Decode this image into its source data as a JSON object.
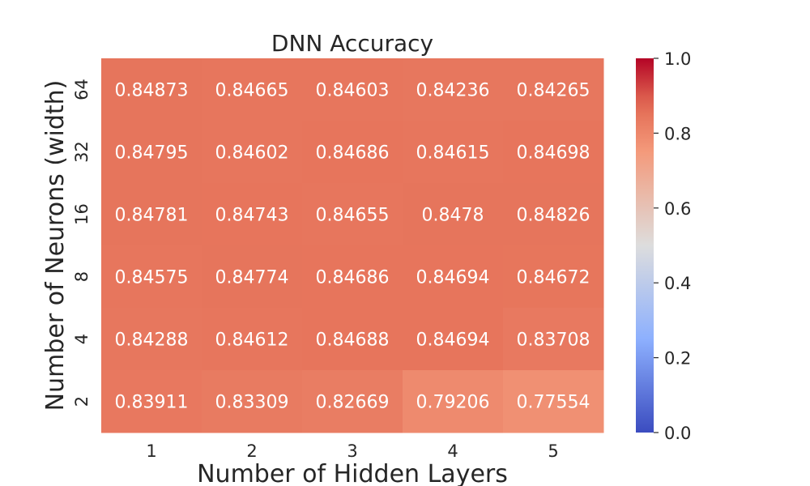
{
  "chart_data": {
    "type": "heatmap",
    "title": "DNN Accuracy",
    "xlabel": "Number of Hidden Layers",
    "ylabel": "Number of Neurons (width)",
    "x_categories": [
      "1",
      "2",
      "3",
      "4",
      "5"
    ],
    "y_categories": [
      "64",
      "32",
      "16",
      "8",
      "4",
      "2"
    ],
    "values": [
      [
        0.84873,
        0.84665,
        0.84603,
        0.84236,
        0.84265
      ],
      [
        0.84795,
        0.84602,
        0.84686,
        0.84615,
        0.84698
      ],
      [
        0.84781,
        0.84743,
        0.84655,
        0.8478,
        0.84826
      ],
      [
        0.84575,
        0.84774,
        0.84686,
        0.84694,
        0.84672
      ],
      [
        0.84288,
        0.84612,
        0.84688,
        0.84694,
        0.83708
      ],
      [
        0.83911,
        0.83309,
        0.82669,
        0.79206,
        0.77554
      ]
    ],
    "colormap": "coolwarm",
    "vmin": 0.0,
    "vmax": 1.0,
    "colorbar_ticks": [
      "0.0",
      "0.2",
      "0.4",
      "0.6",
      "0.8",
      "1.0"
    ]
  }
}
